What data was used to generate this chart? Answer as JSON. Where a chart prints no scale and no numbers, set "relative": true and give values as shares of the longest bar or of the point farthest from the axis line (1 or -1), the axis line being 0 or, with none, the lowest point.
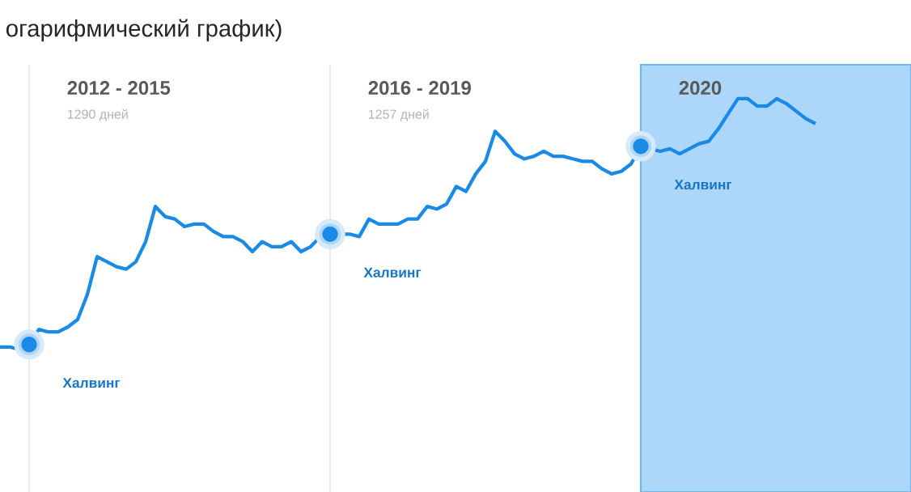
{
  "chart_data": {
    "type": "line",
    "title": "огарифмический график)",
    "relative": true,
    "marker": "none",
    "categories": [
      null,
      null,
      null,
      null,
      null,
      null,
      null,
      null,
      null,
      null,
      null,
      null,
      null,
      null,
      null,
      null,
      null,
      null,
      null,
      null,
      null,
      null,
      null,
      null,
      null,
      null,
      null,
      null,
      null,
      null,
      null,
      null,
      null,
      null,
      null,
      null,
      null,
      null,
      null,
      null,
      null,
      null,
      null,
      null,
      null,
      null,
      null,
      null,
      null,
      null,
      null,
      null,
      null,
      null,
      null,
      null,
      null,
      null,
      null,
      null,
      null,
      null,
      null,
      null,
      null,
      null,
      null,
      null,
      null,
      null,
      null,
      null,
      null,
      null,
      null,
      null,
      null,
      null,
      null,
      null,
      null,
      null,
      null,
      null,
      null
    ],
    "series": [
      {
        "color": "#1a8ae6",
        "values": [
          0.01,
          0.01,
          0.0,
          0.02,
          0.08,
          0.07,
          0.07,
          0.09,
          0.12,
          0.22,
          0.37,
          0.35,
          0.33,
          0.32,
          0.35,
          0.43,
          0.57,
          0.53,
          0.52,
          0.49,
          0.5,
          0.5,
          0.47,
          0.45,
          0.45,
          0.43,
          0.39,
          0.43,
          0.41,
          0.41,
          0.43,
          0.39,
          0.41,
          0.45,
          0.46,
          0.46,
          0.46,
          0.45,
          0.52,
          0.5,
          0.5,
          0.5,
          0.52,
          0.52,
          0.57,
          0.56,
          0.58,
          0.65,
          0.63,
          0.7,
          0.75,
          0.87,
          0.83,
          0.78,
          0.76,
          0.77,
          0.79,
          0.77,
          0.77,
          0.76,
          0.75,
          0.75,
          0.72,
          0.7,
          0.71,
          0.74,
          0.81,
          0.8,
          0.79,
          0.8,
          0.78,
          0.8,
          0.82,
          0.83,
          0.88,
          0.94,
          1.0,
          1.0,
          0.97,
          0.97,
          1.0,
          0.98,
          0.95,
          0.92,
          0.9
        ]
      }
    ],
    "annotations": [
      "2012 - 2015",
      "1290 дней",
      "2016 - 2019",
      "1257 дней",
      "2020",
      "Халвинг",
      "Халвинг",
      "Халвинг"
    ]
  }
}
